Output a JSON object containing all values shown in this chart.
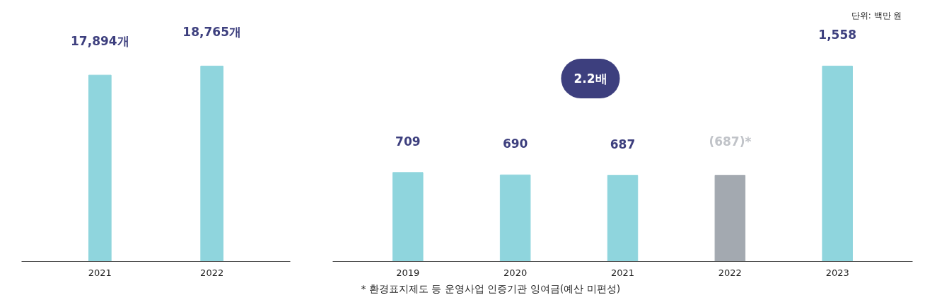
{
  "chart_data": [
    {
      "type": "bar",
      "categories": [
        "2021",
        "2022"
      ],
      "values": [
        17894,
        18765
      ],
      "colors": [
        "#8fd5dd",
        "#8fd5dd"
      ],
      "value_labels": [
        "17,894개",
        "18,765개"
      ],
      "tick_labels": "x"
    },
    {
      "type": "bar",
      "categories": [
        "2019",
        "2020",
        "2021",
        "2022",
        "2023"
      ],
      "values": [
        709,
        690,
        687,
        687,
        1558
      ],
      "colors": [
        "#8fd5dd",
        "#8fd5dd",
        "#8fd5dd",
        "#a3a9b0",
        "#8fd5dd"
      ],
      "value_labels": [
        "709",
        "690",
        "687",
        "(687)*",
        "1,558"
      ],
      "tick_labels": "x",
      "annotations": [
        "단위: 백만 원",
        "2.2배",
        "* 환경표지제도 등 운영사업 인증기관 잉여금(예산 미편성)"
      ]
    }
  ]
}
